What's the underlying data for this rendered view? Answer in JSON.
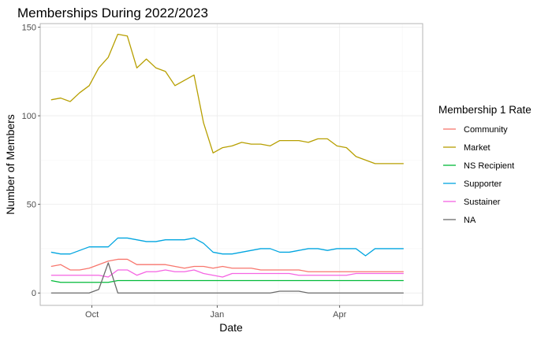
{
  "chart_data": {
    "type": "line",
    "title": "Memberships During 2022/2023",
    "xlabel": "Date",
    "ylabel": "Number of Members",
    "legend_title": "Membership 1 Rate",
    "legend_position": "right",
    "grid": true,
    "x_axis_type": "date",
    "xlim": [
      "2022-08-24",
      "2023-06-01"
    ],
    "ylim": [
      -7,
      152
    ],
    "x_ticks": [
      {
        "date": "2022-10-01",
        "label": "Oct"
      },
      {
        "date": "2023-01-01",
        "label": "Jan"
      },
      {
        "date": "2023-04-01",
        "label": "Apr"
      }
    ],
    "y_ticks": [
      0,
      50,
      100,
      150
    ],
    "x": [
      "2022-09-01",
      "2022-09-08",
      "2022-09-15",
      "2022-09-22",
      "2022-09-29",
      "2022-10-06",
      "2022-10-13",
      "2022-10-20",
      "2022-10-27",
      "2022-11-03",
      "2022-11-10",
      "2022-11-17",
      "2022-11-24",
      "2022-12-01",
      "2022-12-08",
      "2022-12-15",
      "2022-12-22",
      "2022-12-29",
      "2023-01-05",
      "2023-01-12",
      "2023-01-19",
      "2023-01-26",
      "2023-02-02",
      "2023-02-09",
      "2023-02-16",
      "2023-02-23",
      "2023-03-02",
      "2023-03-09",
      "2023-03-16",
      "2023-03-23",
      "2023-03-30",
      "2023-04-06",
      "2023-04-13",
      "2023-04-20",
      "2023-04-27",
      "2023-05-04",
      "2023-05-11",
      "2023-05-18"
    ],
    "series": [
      {
        "name": "Community",
        "color": "#F8766D",
        "values": [
          15,
          16,
          13,
          13,
          14,
          16,
          18,
          19,
          19,
          16,
          16,
          16,
          16,
          15,
          14,
          15,
          15,
          14,
          15,
          14,
          14,
          14,
          13,
          13,
          13,
          13,
          13,
          12,
          12,
          12,
          12,
          12,
          12,
          12,
          12,
          12,
          12,
          12
        ]
      },
      {
        "name": "Market",
        "color": "#B79F00",
        "values": [
          109,
          110,
          108,
          113,
          117,
          127,
          133,
          146,
          145,
          127,
          132,
          127,
          125,
          117,
          120,
          123,
          96,
          79,
          82,
          83,
          85,
          84,
          84,
          83,
          86,
          86,
          86,
          85,
          87,
          87,
          83,
          82,
          77,
          75,
          73,
          73,
          73,
          73
        ]
      },
      {
        "name": "NS Recipient",
        "color": "#00BA38",
        "values": [
          7,
          6,
          6,
          6,
          6,
          6,
          6,
          7,
          7,
          7,
          7,
          7,
          7,
          7,
          7,
          7,
          7,
          7,
          7,
          7,
          7,
          7,
          7,
          7,
          7,
          7,
          7,
          7,
          7,
          7,
          7,
          7,
          7,
          7,
          7,
          7,
          7,
          7
        ]
      },
      {
        "name": "Supporter",
        "color": "#00A5E0",
        "values": [
          23,
          22,
          22,
          24,
          26,
          26,
          26,
          31,
          31,
          30,
          29,
          29,
          30,
          30,
          30,
          31,
          28,
          23,
          22,
          22,
          23,
          24,
          25,
          25,
          23,
          23,
          24,
          25,
          25,
          24,
          25,
          25,
          25,
          21,
          25,
          25,
          25,
          25
        ]
      },
      {
        "name": "Sustainer",
        "color": "#F564E3",
        "values": [
          10,
          10,
          10,
          10,
          10,
          10,
          9,
          13,
          13,
          10,
          12,
          12,
          13,
          12,
          12,
          13,
          11,
          10,
          9,
          11,
          11,
          11,
          11,
          11,
          11,
          11,
          10,
          10,
          10,
          10,
          10,
          10,
          11,
          11,
          11,
          11,
          11,
          11
        ]
      },
      {
        "name": "NA",
        "color": "#6B6B6B",
        "values": [
          0,
          0,
          0,
          0,
          0,
          2,
          17,
          0,
          0,
          0,
          0,
          0,
          0,
          0,
          0,
          0,
          0,
          0,
          0,
          0,
          0,
          0,
          0,
          0,
          1,
          1,
          1,
          0,
          0,
          0,
          0,
          0,
          0,
          0,
          0,
          0,
          0,
          0
        ]
      }
    ]
  }
}
